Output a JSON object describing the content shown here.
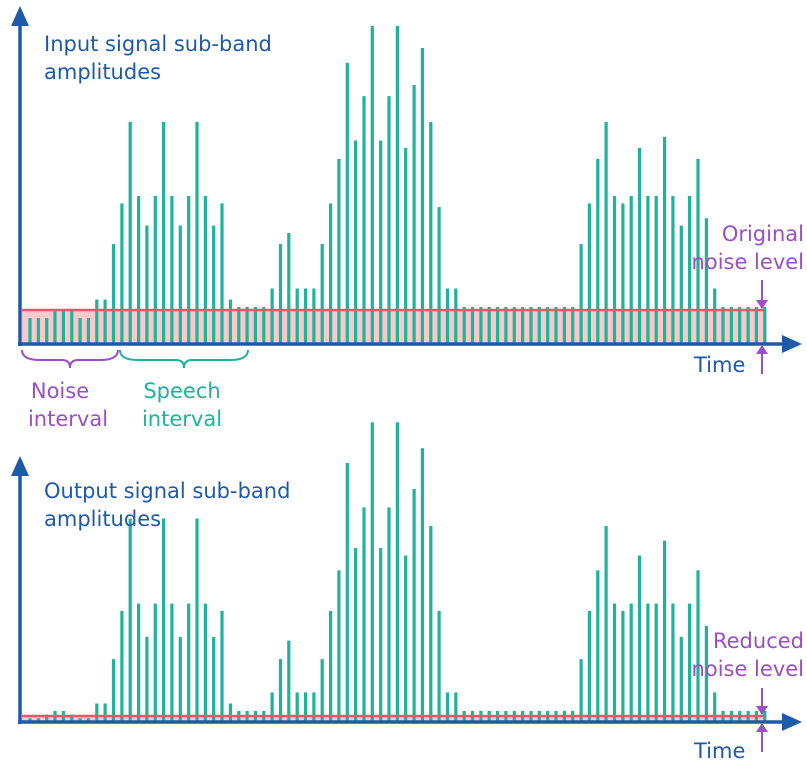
{
  "top_panel": {
    "title_line1": "Input signal sub-band",
    "title_line2": "amplitudes",
    "axis_label": "Time",
    "level_label_line1": "Original",
    "level_label_line2": "noise level",
    "noise_interval_line1": "Noise",
    "noise_interval_line2": "interval",
    "speech_interval_line1": "Speech",
    "speech_interval_line2": "interval"
  },
  "bottom_panel": {
    "title_line1": "Output signal sub-band",
    "title_line2": "amplitudes",
    "axis_label": "Time",
    "level_label_line1": "Reduced",
    "level_label_line2": "noise level"
  },
  "colors": {
    "axis": "#1f5aa8",
    "bar": "#1fb39e",
    "noise_fill": "#f6c9cc",
    "noise_line": "#e5586a",
    "annotation": "#9a4fc2",
    "speech_brace": "#1fb39e",
    "text_blue": "#1f5aa8"
  },
  "chart_data": {
    "type": "bar",
    "series": [
      {
        "name": "Input signal sub-band amplitudes",
        "values": [
          0.7,
          0.7,
          0.7,
          0.9,
          0.9,
          0.9,
          0.7,
          0.7,
          1.2,
          1.2,
          2.7,
          3.8,
          6.0,
          4.0,
          3.2,
          4.0,
          6.0,
          4.0,
          3.2,
          4.0,
          6.0,
          4.0,
          3.2,
          3.8,
          1.2,
          1.0,
          1.0,
          1.0,
          1.0,
          1.5,
          2.7,
          3.0,
          1.5,
          1.5,
          1.5,
          2.7,
          3.8,
          5.0,
          7.6,
          5.5,
          6.7,
          8.6,
          5.5,
          6.7,
          8.6,
          5.3,
          7.0,
          8.0,
          6.0,
          3.7,
          1.5,
          1.5,
          1.0,
          1.0,
          1.0,
          1.0,
          1.0,
          1.0,
          1.0,
          1.0,
          1.0,
          1.0,
          1.0,
          1.0,
          1.0,
          1.0,
          2.7,
          3.8,
          5.0,
          6.0,
          4.0,
          3.8,
          4.0,
          5.3,
          4.0,
          4.0,
          5.6,
          4.0,
          3.2,
          4.0,
          5.0,
          3.4,
          1.5,
          1.0,
          1.0,
          1.0,
          1.0,
          1.0,
          1.0
        ]
      },
      {
        "name": "Output signal sub-band amplitudes",
        "values": [
          0.1,
          0.1,
          0.2,
          0.3,
          0.3,
          0.2,
          0.1,
          0.1,
          0.5,
          0.5,
          1.7,
          3.0,
          5.5,
          3.2,
          2.3,
          3.2,
          5.5,
          3.2,
          2.3,
          3.2,
          5.5,
          3.2,
          2.3,
          3.0,
          0.5,
          0.3,
          0.3,
          0.3,
          0.3,
          0.8,
          1.7,
          2.2,
          0.8,
          0.8,
          0.8,
          1.7,
          3.0,
          4.1,
          7.0,
          4.7,
          5.8,
          8.1,
          4.7,
          5.8,
          8.1,
          4.5,
          6.3,
          7.4,
          5.3,
          3.0,
          0.8,
          0.8,
          0.3,
          0.3,
          0.3,
          0.3,
          0.3,
          0.3,
          0.3,
          0.3,
          0.3,
          0.3,
          0.3,
          0.3,
          0.3,
          0.3,
          1.7,
          3.0,
          4.1,
          5.3,
          3.2,
          3.0,
          3.2,
          4.5,
          3.2,
          3.2,
          4.9,
          3.2,
          2.3,
          3.2,
          4.1,
          2.6,
          0.8,
          0.3,
          0.3,
          0.3,
          0.3,
          0.3,
          0.3
        ]
      }
    ],
    "original_noise_level": 1.0,
    "reduced_noise_level": 0.1
  }
}
